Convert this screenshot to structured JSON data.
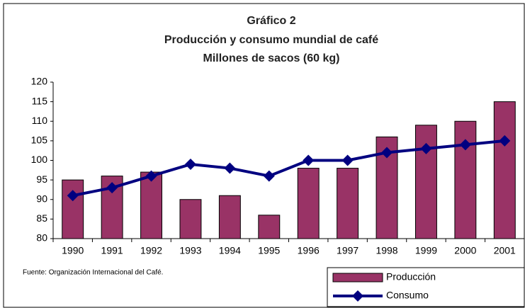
{
  "chart_data": {
    "type": "bar_line",
    "title_lines": [
      "Gráfico 2",
      "Producción y consumo mundial de café",
      "Millones de sacos (60 kg)"
    ],
    "source": "Fuente: Organización Internacional del Café.",
    "categories": [
      "1990",
      "1991",
      "1992",
      "1993",
      "1994",
      "1995",
      "1996",
      "1997",
      "1998",
      "1999",
      "2000",
      "2001"
    ],
    "series": [
      {
        "name": "Producción",
        "type": "bar",
        "color": "#993366",
        "values": [
          95,
          96,
          97,
          90,
          91,
          86,
          98,
          98,
          106,
          109,
          110,
          115
        ]
      },
      {
        "name": "Consumo",
        "type": "line",
        "color": "#000080",
        "values": [
          91,
          93,
          96,
          99,
          98,
          96,
          100,
          100,
          102,
          103,
          104,
          105
        ]
      }
    ],
    "ylim": [
      80,
      120
    ],
    "yticks": [
      80,
      85,
      90,
      95,
      100,
      105,
      110,
      115,
      120
    ],
    "grid": false
  }
}
